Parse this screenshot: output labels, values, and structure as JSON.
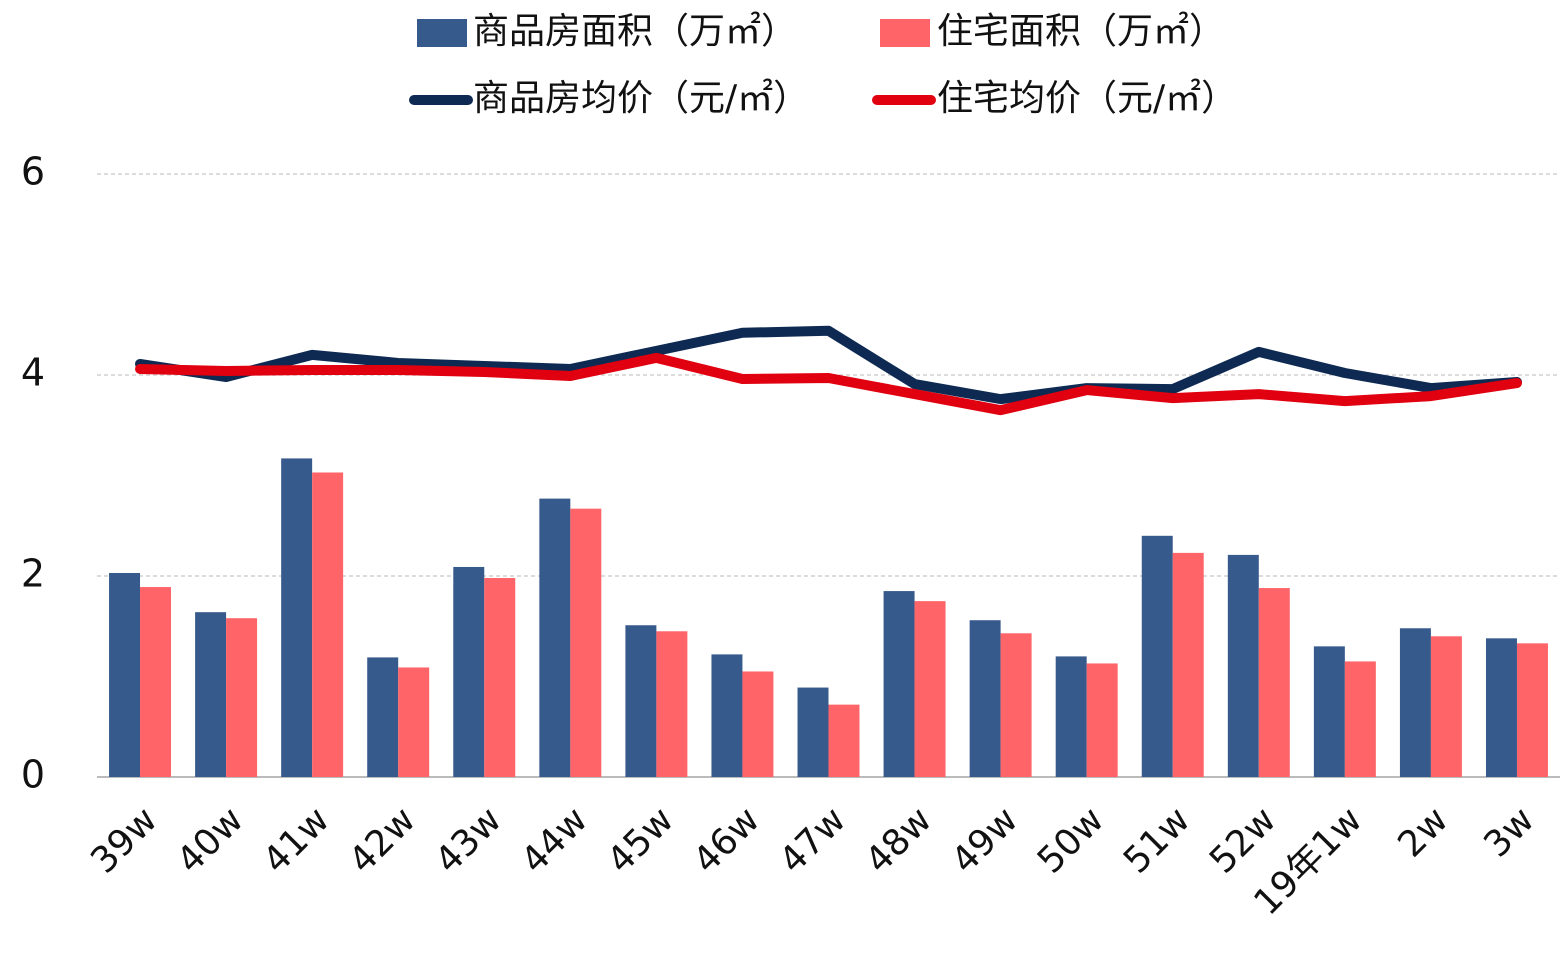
{
  "chart_data": {
    "type": "bar",
    "categories": [
      "39w",
      "40w",
      "41w",
      "42w",
      "43w",
      "44w",
      "45w",
      "46w",
      "47w",
      "48w",
      "49w",
      "50w",
      "51w",
      "52w",
      "19年1w",
      "2w",
      "3w"
    ],
    "series": [
      {
        "name": "商品房面积（万㎡）",
        "type": "bar",
        "color": "#375a8c",
        "values": [
          2.03,
          1.64,
          3.17,
          1.19,
          2.09,
          2.77,
          1.51,
          1.22,
          0.89,
          1.85,
          1.56,
          1.2,
          2.4,
          2.21,
          1.3,
          1.48,
          1.38
        ]
      },
      {
        "name": "住宅面积（万㎡）",
        "type": "bar",
        "color": "#ff6468",
        "values": [
          1.89,
          1.58,
          3.03,
          1.09,
          1.98,
          2.67,
          1.45,
          1.05,
          0.72,
          1.75,
          1.43,
          1.13,
          2.23,
          1.88,
          1.15,
          1.4,
          1.33
        ]
      },
      {
        "name": "商品房均价（元/㎡）",
        "type": "line",
        "color": "#0e2a52",
        "values": [
          4.11,
          3.98,
          4.2,
          4.12,
          4.09,
          4.06,
          4.24,
          4.42,
          4.44,
          3.91,
          3.76,
          3.87,
          3.86,
          4.23,
          4.02,
          3.87,
          3.93
        ]
      },
      {
        "name": "住宅均价（元/㎡）",
        "type": "line",
        "color": "#e00010",
        "values": [
          4.06,
          4.04,
          4.05,
          4.05,
          4.03,
          3.99,
          4.17,
          3.96,
          3.97,
          3.81,
          3.65,
          3.85,
          3.77,
          3.81,
          3.74,
          3.79,
          3.92
        ]
      }
    ],
    "ylim": [
      0,
      6
    ],
    "yticks": [
      0,
      2,
      4,
      6
    ],
    "grid": true,
    "legend": "top"
  }
}
